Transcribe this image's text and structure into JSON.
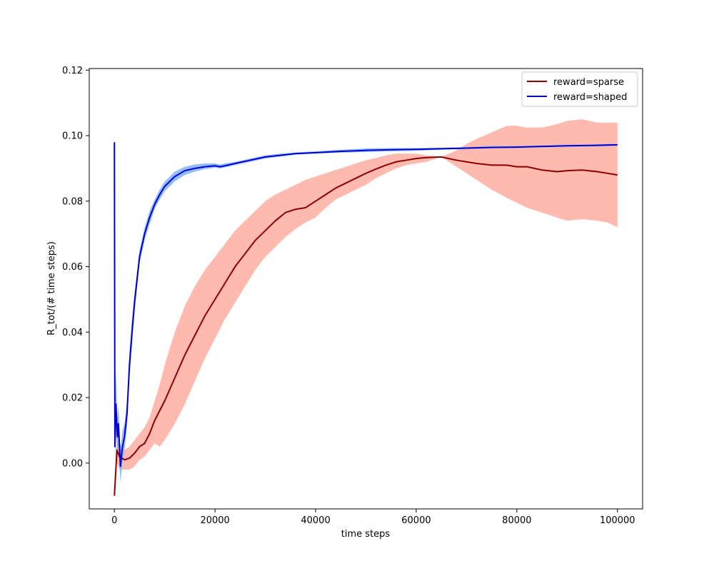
{
  "chart_data": {
    "type": "line",
    "title": "",
    "xlabel": "time steps",
    "ylabel": "R_tot/(# time steps)",
    "xlim": [
      -5000,
      105000
    ],
    "ylim": [
      -0.014,
      0.1205
    ],
    "xticks": [
      0,
      20000,
      40000,
      60000,
      80000,
      100000
    ],
    "xtick_labels": [
      "0",
      "20000",
      "40000",
      "60000",
      "80000",
      "100000"
    ],
    "yticks": [
      0.0,
      0.02,
      0.04,
      0.06,
      0.08,
      0.1,
      0.12
    ],
    "ytick_labels": [
      "0.00",
      "0.02",
      "0.04",
      "0.06",
      "0.08",
      "0.10",
      "0.12"
    ],
    "grid": false,
    "legend_position": "top-right",
    "series": [
      {
        "name": "reward=sparse",
        "color": "#8b0000",
        "band_color": "#ffaea1",
        "x": [
          0,
          500,
          1000,
          2000,
          3000,
          4000,
          5000,
          6000,
          7000,
          8000,
          9000,
          10000,
          12000,
          14000,
          16000,
          18000,
          20000,
          22000,
          24000,
          26000,
          28000,
          30000,
          32000,
          34000,
          36000,
          38000,
          40000,
          42000,
          44000,
          46000,
          48000,
          50000,
          52000,
          54000,
          56000,
          58000,
          60000,
          62000,
          65000,
          68000,
          70000,
          72000,
          75000,
          78000,
          80000,
          82000,
          85000,
          88000,
          90000,
          93000,
          96000,
          98000,
          100000
        ],
        "y": [
          -0.01,
          0.004,
          0.002,
          0.001,
          0.0015,
          0.003,
          0.005,
          0.006,
          0.009,
          0.013,
          0.016,
          0.019,
          0.026,
          0.033,
          0.039,
          0.045,
          0.05,
          0.055,
          0.06,
          0.064,
          0.068,
          0.071,
          0.074,
          0.0765,
          0.0775,
          0.078,
          0.08,
          0.082,
          0.084,
          0.0855,
          0.087,
          0.0885,
          0.0898,
          0.091,
          0.092,
          0.0925,
          0.093,
          0.0933,
          0.0935,
          0.0925,
          0.092,
          0.0915,
          0.091,
          0.091,
          0.0905,
          0.0905,
          0.0895,
          0.089,
          0.0893,
          0.0895,
          0.089,
          0.0885,
          0.088
        ],
        "lower": [
          -0.01,
          0.0,
          -0.002,
          -0.002,
          -0.002,
          -0.001,
          0.001,
          0.002,
          0.004,
          0.006,
          0.005,
          0.007,
          0.012,
          0.018,
          0.025,
          0.032,
          0.038,
          0.044,
          0.049,
          0.054,
          0.059,
          0.063,
          0.066,
          0.069,
          0.0715,
          0.0735,
          0.075,
          0.078,
          0.0805,
          0.082,
          0.0835,
          0.085,
          0.087,
          0.0885,
          0.09,
          0.091,
          0.0915,
          0.092,
          0.0935,
          0.0905,
          0.0885,
          0.0865,
          0.0835,
          0.081,
          0.0795,
          0.078,
          0.0765,
          0.075,
          0.074,
          0.0745,
          0.074,
          0.0735,
          0.072
        ],
        "upper": [
          -0.01,
          0.008,
          0.006,
          0.004,
          0.005,
          0.007,
          0.009,
          0.011,
          0.014,
          0.019,
          0.024,
          0.03,
          0.04,
          0.048,
          0.054,
          0.059,
          0.063,
          0.067,
          0.071,
          0.074,
          0.077,
          0.08,
          0.082,
          0.0835,
          0.085,
          0.0865,
          0.0875,
          0.0885,
          0.0895,
          0.0905,
          0.0915,
          0.0925,
          0.0932,
          0.094,
          0.0945,
          0.0945,
          0.0945,
          0.094,
          0.0935,
          0.0955,
          0.0975,
          0.099,
          0.101,
          0.103,
          0.103,
          0.1025,
          0.1025,
          0.1035,
          0.1045,
          0.105,
          0.104,
          0.104,
          0.104
        ]
      },
      {
        "name": "reward=shaped",
        "color": "#0000cd",
        "band_color": "#7fb3ff",
        "x": [
          0,
          100,
          300,
          600,
          800,
          1200,
          1600,
          2000,
          2500,
          3000,
          3500,
          4000,
          5000,
          6000,
          7000,
          8000,
          9000,
          10000,
          12000,
          14000,
          16000,
          18000,
          20000,
          21000,
          22000,
          24000,
          27000,
          30000,
          33000,
          36000,
          40000,
          45000,
          50000,
          55000,
          60000,
          65000,
          70000,
          75000,
          80000,
          85000,
          90000,
          95000,
          100000
        ],
        "y": [
          0.098,
          0.005,
          0.018,
          0.008,
          0.012,
          -0.001,
          0.005,
          0.008,
          0.015,
          0.03,
          0.04,
          0.049,
          0.063,
          0.07,
          0.075,
          0.079,
          0.082,
          0.0845,
          0.0875,
          0.0893,
          0.09,
          0.0905,
          0.0908,
          0.0905,
          0.0908,
          0.0915,
          0.0925,
          0.0935,
          0.094,
          0.0945,
          0.0948,
          0.0952,
          0.0955,
          0.0957,
          0.0958,
          0.096,
          0.0962,
          0.0964,
          0.0965,
          0.0967,
          0.0969,
          0.097,
          0.0972
        ],
        "lower": [
          0.098,
          0.0,
          0.01,
          0.002,
          0.006,
          -0.006,
          0.0,
          0.004,
          0.011,
          0.026,
          0.036,
          0.046,
          0.061,
          0.068,
          0.073,
          0.0775,
          0.0805,
          0.083,
          0.086,
          0.088,
          0.089,
          0.0898,
          0.0902,
          0.09,
          0.0903,
          0.091,
          0.092,
          0.093,
          0.0936,
          0.0942,
          0.0945,
          0.0948,
          0.095,
          0.0952,
          0.0954,
          0.0957,
          0.0959,
          0.0961,
          0.0962,
          0.0964,
          0.0966,
          0.0967,
          0.0969
        ],
        "upper": [
          0.098,
          0.012,
          0.028,
          0.014,
          0.018,
          0.004,
          0.01,
          0.012,
          0.019,
          0.034,
          0.044,
          0.052,
          0.065,
          0.072,
          0.077,
          0.0805,
          0.0835,
          0.086,
          0.089,
          0.0905,
          0.0912,
          0.0915,
          0.0915,
          0.0912,
          0.0915,
          0.092,
          0.093,
          0.094,
          0.0945,
          0.0949,
          0.0952,
          0.0957,
          0.0961,
          0.0962,
          0.0962,
          0.0963,
          0.0965,
          0.0967,
          0.0968,
          0.097,
          0.0972,
          0.0973,
          0.0975
        ]
      }
    ]
  }
}
